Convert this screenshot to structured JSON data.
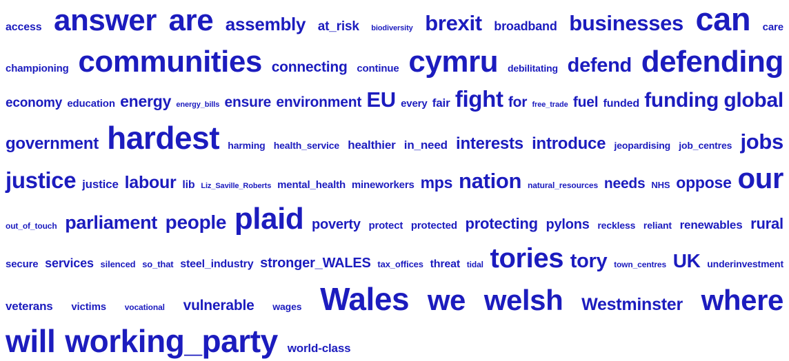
{
  "page": {
    "background": "#ffffff"
  },
  "chart_data": {
    "type": "wordcloud",
    "title": "",
    "word_color": "#1c1cbe",
    "background": "#ffffff",
    "layout": "alphabetical-rows-justified",
    "rows": [
      {
        "justify": "space-between",
        "words": [
          {
            "text": "access",
            "size": 16
          },
          {
            "text": "answer",
            "size": 44
          },
          {
            "text": "are",
            "size": 44
          },
          {
            "text": "assembly",
            "size": 26
          },
          {
            "text": "at_risk",
            "size": 19
          },
          {
            "text": "biodiversity",
            "size": 11
          },
          {
            "text": "brexit",
            "size": 31
          },
          {
            "text": "broadband",
            "size": 18
          },
          {
            "text": "businesses",
            "size": 31
          },
          {
            "text": "can",
            "size": 47
          },
          {
            "text": "care",
            "size": 15
          }
        ]
      },
      {
        "justify": "space-between",
        "words": [
          {
            "text": "championing",
            "size": 15
          },
          {
            "text": "communities",
            "size": 44
          },
          {
            "text": "connecting",
            "size": 21
          },
          {
            "text": "continue",
            "size": 15
          },
          {
            "text": "cymru",
            "size": 44
          },
          {
            "text": "debilitating",
            "size": 14
          },
          {
            "text": "defend",
            "size": 29
          },
          {
            "text": "defending",
            "size": 44
          }
        ]
      },
      {
        "justify": "space-between",
        "words": [
          {
            "text": "economy",
            "size": 19
          },
          {
            "text": "education",
            "size": 15
          },
          {
            "text": "energy",
            "size": 23
          },
          {
            "text": "energy_bills",
            "size": 11
          },
          {
            "text": "ensure",
            "size": 21
          },
          {
            "text": "environment",
            "size": 21
          },
          {
            "text": "EU",
            "size": 31
          },
          {
            "text": "every",
            "size": 15
          },
          {
            "text": "fair",
            "size": 17
          },
          {
            "text": "fight",
            "size": 33
          },
          {
            "text": "for",
            "size": 21
          },
          {
            "text": "free_trade",
            "size": 11
          },
          {
            "text": "fuel",
            "size": 21
          },
          {
            "text": "funded",
            "size": 16
          },
          {
            "text": "funding",
            "size": 30
          },
          {
            "text": "global",
            "size": 30
          }
        ]
      },
      {
        "justify": "space-between",
        "words": [
          {
            "text": "government",
            "size": 24
          },
          {
            "text": "hardest",
            "size": 46
          },
          {
            "text": "harming",
            "size": 14
          },
          {
            "text": "health_service",
            "size": 14
          },
          {
            "text": "healthier",
            "size": 17
          },
          {
            "text": "in_need",
            "size": 17
          },
          {
            "text": "interests",
            "size": 24
          },
          {
            "text": "introduce",
            "size": 24
          },
          {
            "text": "jeopardising",
            "size": 14
          },
          {
            "text": "job_centres",
            "size": 14
          },
          {
            "text": "jobs",
            "size": 31
          }
        ]
      },
      {
        "justify": "space-between",
        "words": [
          {
            "text": "justice",
            "size": 33
          },
          {
            "text": "justice",
            "size": 17
          },
          {
            "text": "labour",
            "size": 25
          },
          {
            "text": "lib",
            "size": 16
          },
          {
            "text": "Liz_Saville_Roberts",
            "size": 11
          },
          {
            "text": "mental_health",
            "size": 15
          },
          {
            "text": "mineworkers",
            "size": 15
          },
          {
            "text": "mps",
            "size": 23
          },
          {
            "text": "nation",
            "size": 31
          },
          {
            "text": "natural_resources",
            "size": 12
          },
          {
            "text": "needs",
            "size": 21
          },
          {
            "text": "NHS",
            "size": 13
          },
          {
            "text": "oppose",
            "size": 23
          },
          {
            "text": "our",
            "size": 42
          }
        ]
      },
      {
        "justify": "space-between",
        "words": [
          {
            "text": "out_of_touch",
            "size": 12
          },
          {
            "text": "parliament",
            "size": 27
          },
          {
            "text": "people",
            "size": 28
          },
          {
            "text": "plaid",
            "size": 44
          },
          {
            "text": "poverty",
            "size": 20
          },
          {
            "text": "protect",
            "size": 15
          },
          {
            "text": "protected",
            "size": 15
          },
          {
            "text": "protecting",
            "size": 22
          },
          {
            "text": "pylons",
            "size": 20
          },
          {
            "text": "reckless",
            "size": 14
          },
          {
            "text": "reliant",
            "size": 14
          },
          {
            "text": "renewables",
            "size": 17
          },
          {
            "text": "rural",
            "size": 22
          }
        ]
      },
      {
        "justify": "space-between",
        "words": [
          {
            "text": "secure",
            "size": 15
          },
          {
            "text": "services",
            "size": 18
          },
          {
            "text": "silenced",
            "size": 13
          },
          {
            "text": "so_that",
            "size": 13
          },
          {
            "text": "steel_industry",
            "size": 16
          },
          {
            "text": "stronger_WALES",
            "size": 20
          },
          {
            "text": "tax_offices",
            "size": 13
          },
          {
            "text": "threat",
            "size": 16
          },
          {
            "text": "tidal",
            "size": 12
          },
          {
            "text": "tories",
            "size": 40
          },
          {
            "text": "tory",
            "size": 29
          },
          {
            "text": "town_centres",
            "size": 12
          },
          {
            "text": "UK",
            "size": 28
          },
          {
            "text": "underinvestment",
            "size": 14
          }
        ]
      },
      {
        "justify": "space-between",
        "words": [
          {
            "text": "veterans",
            "size": 17
          },
          {
            "text": "victims",
            "size": 15
          },
          {
            "text": "vocational",
            "size": 12
          },
          {
            "text": "vulnerable",
            "size": 21
          },
          {
            "text": "wages",
            "size": 14
          },
          {
            "text": "Wales",
            "size": 46
          },
          {
            "text": "we",
            "size": 42
          },
          {
            "text": "welsh",
            "size": 42
          },
          {
            "text": "Westminster",
            "size": 25
          },
          {
            "text": "where",
            "size": 42
          }
        ]
      },
      {
        "justify": "start",
        "words": [
          {
            "text": "will",
            "size": 46
          },
          {
            "text": "working_party",
            "size": 46
          },
          {
            "text": "world-class",
            "size": 17
          }
        ]
      }
    ]
  }
}
